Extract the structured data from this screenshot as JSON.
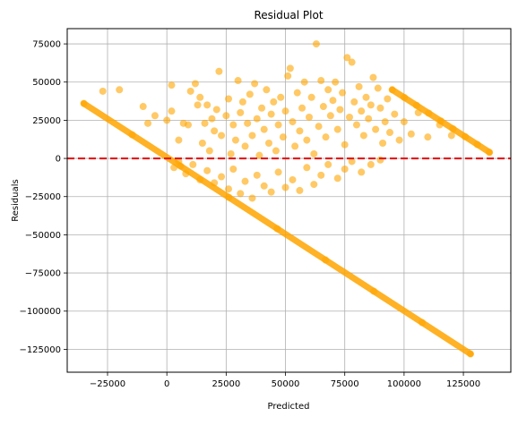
{
  "chart_data": {
    "type": "scatter",
    "title": "Residual Plot",
    "xlabel": "Predicted",
    "ylabel": "Residuals",
    "xlim": [
      -42000,
      145000
    ],
    "ylim": [
      -140000,
      85000
    ],
    "xticks": [
      -25000,
      0,
      25000,
      50000,
      75000,
      100000,
      125000
    ],
    "yticks": [
      75000,
      50000,
      25000,
      0,
      -25000,
      -50000,
      -75000,
      -100000,
      -125000
    ],
    "xtick_labels": [
      "−25000",
      "0",
      "25000",
      "50000",
      "75000",
      "100000",
      "125000"
    ],
    "ytick_labels": [
      "75000",
      "50000",
      "25000",
      "0",
      "−25000",
      "−50000",
      "−75000",
      "−100000",
      "−125000"
    ],
    "grid": true,
    "point_color": "#FFA500",
    "point_opacity": 0.6,
    "reference_line": {
      "y": 0,
      "color": "#E41A1C",
      "style": "dashed"
    },
    "bands": [
      {
        "name": "lower diagonal",
        "x_start": -35000,
        "y_start": 36000,
        "x_end": 128000,
        "y_end": -128000
      },
      {
        "name": "upper diagonal",
        "x_start": 95000,
        "y_start": 45000,
        "x_end": 136000,
        "y_end": 4000
      }
    ],
    "scatter_points": [
      [
        -27000,
        44000
      ],
      [
        -20000,
        45000
      ],
      [
        -10000,
        34000
      ],
      [
        -8000,
        23000
      ],
      [
        -5000,
        28000
      ],
      [
        0,
        25000
      ],
      [
        2000,
        31000
      ],
      [
        2000,
        48000
      ],
      [
        5000,
        12000
      ],
      [
        7000,
        23000
      ],
      [
        9000,
        22000
      ],
      [
        10000,
        44000
      ],
      [
        12000,
        49000
      ],
      [
        13000,
        35000
      ],
      [
        14000,
        40000
      ],
      [
        15000,
        10000
      ],
      [
        16000,
        23000
      ],
      [
        17000,
        35000
      ],
      [
        18000,
        5000
      ],
      [
        19000,
        26000
      ],
      [
        20000,
        18000
      ],
      [
        21000,
        32000
      ],
      [
        22000,
        57000
      ],
      [
        23000,
        15000
      ],
      [
        25000,
        28000
      ],
      [
        26000,
        39000
      ],
      [
        27000,
        3000
      ],
      [
        28000,
        22000
      ],
      [
        29000,
        12000
      ],
      [
        30000,
        51000
      ],
      [
        31000,
        30000
      ],
      [
        32000,
        37000
      ],
      [
        33000,
        8000
      ],
      [
        34000,
        23000
      ],
      [
        35000,
        42000
      ],
      [
        36000,
        15000
      ],
      [
        37000,
        49000
      ],
      [
        38000,
        26000
      ],
      [
        39000,
        2000
      ],
      [
        40000,
        33000
      ],
      [
        41000,
        19000
      ],
      [
        42000,
        45000
      ],
      [
        43000,
        10000
      ],
      [
        44000,
        29000
      ],
      [
        45000,
        37000
      ],
      [
        46000,
        5000
      ],
      [
        47000,
        22000
      ],
      [
        48000,
        40000
      ],
      [
        49000,
        14000
      ],
      [
        50000,
        31000
      ],
      [
        51000,
        54000
      ],
      [
        52000,
        59000
      ],
      [
        53000,
        24000
      ],
      [
        54000,
        8000
      ],
      [
        55000,
        43000
      ],
      [
        56000,
        18000
      ],
      [
        57000,
        33000
      ],
      [
        58000,
        50000
      ],
      [
        59000,
        12000
      ],
      [
        60000,
        27000
      ],
      [
        61000,
        40000
      ],
      [
        62000,
        3000
      ],
      [
        63000,
        75000
      ],
      [
        64000,
        21000
      ],
      [
        65000,
        51000
      ],
      [
        66000,
        34000
      ],
      [
        67000,
        14000
      ],
      [
        68000,
        45000
      ],
      [
        69000,
        28000
      ],
      [
        70000,
        38000
      ],
      [
        71000,
        50000
      ],
      [
        72000,
        19000
      ],
      [
        73000,
        32000
      ],
      [
        74000,
        43000
      ],
      [
        75000,
        9000
      ],
      [
        76000,
        66000
      ],
      [
        77000,
        27000
      ],
      [
        78000,
        63000
      ],
      [
        79000,
        37000
      ],
      [
        80000,
        22000
      ],
      [
        81000,
        47000
      ],
      [
        82000,
        31000
      ],
      [
        83000,
        15000
      ],
      [
        84000,
        40000
      ],
      [
        85000,
        26000
      ],
      [
        86000,
        35000
      ],
      [
        87000,
        53000
      ],
      [
        88000,
        19000
      ],
      [
        89000,
        46000
      ],
      [
        90000,
        33000
      ],
      [
        91000,
        10000
      ],
      [
        92000,
        24000
      ],
      [
        93000,
        39000
      ],
      [
        94000,
        17000
      ],
      [
        96000,
        29000
      ],
      [
        98000,
        12000
      ],
      [
        100000,
        24000
      ],
      [
        103000,
        16000
      ],
      [
        106000,
        30000
      ],
      [
        110000,
        14000
      ],
      [
        115000,
        22000
      ],
      [
        120000,
        15000
      ],
      [
        3000,
        -6000
      ],
      [
        5000,
        -2000
      ],
      [
        8000,
        -10000
      ],
      [
        11000,
        -4000
      ],
      [
        14000,
        -14000
      ],
      [
        17000,
        -8000
      ],
      [
        20000,
        -16000
      ],
      [
        23000,
        -12000
      ],
      [
        26000,
        -20000
      ],
      [
        28000,
        -7000
      ],
      [
        31000,
        -23000
      ],
      [
        33000,
        -15000
      ],
      [
        36000,
        -26000
      ],
      [
        38000,
        -11000
      ],
      [
        41000,
        -18000
      ],
      [
        44000,
        -22000
      ],
      [
        47000,
        -9000
      ],
      [
        50000,
        -19000
      ],
      [
        53000,
        -14000
      ],
      [
        56000,
        -21000
      ],
      [
        59000,
        -6000
      ],
      [
        62000,
        -17000
      ],
      [
        65000,
        -11000
      ],
      [
        68000,
        -4000
      ],
      [
        72000,
        -13000
      ],
      [
        75000,
        -7000
      ],
      [
        78000,
        -2000
      ],
      [
        82000,
        -9000
      ],
      [
        86000,
        -4000
      ],
      [
        90000,
        -1000
      ]
    ]
  }
}
